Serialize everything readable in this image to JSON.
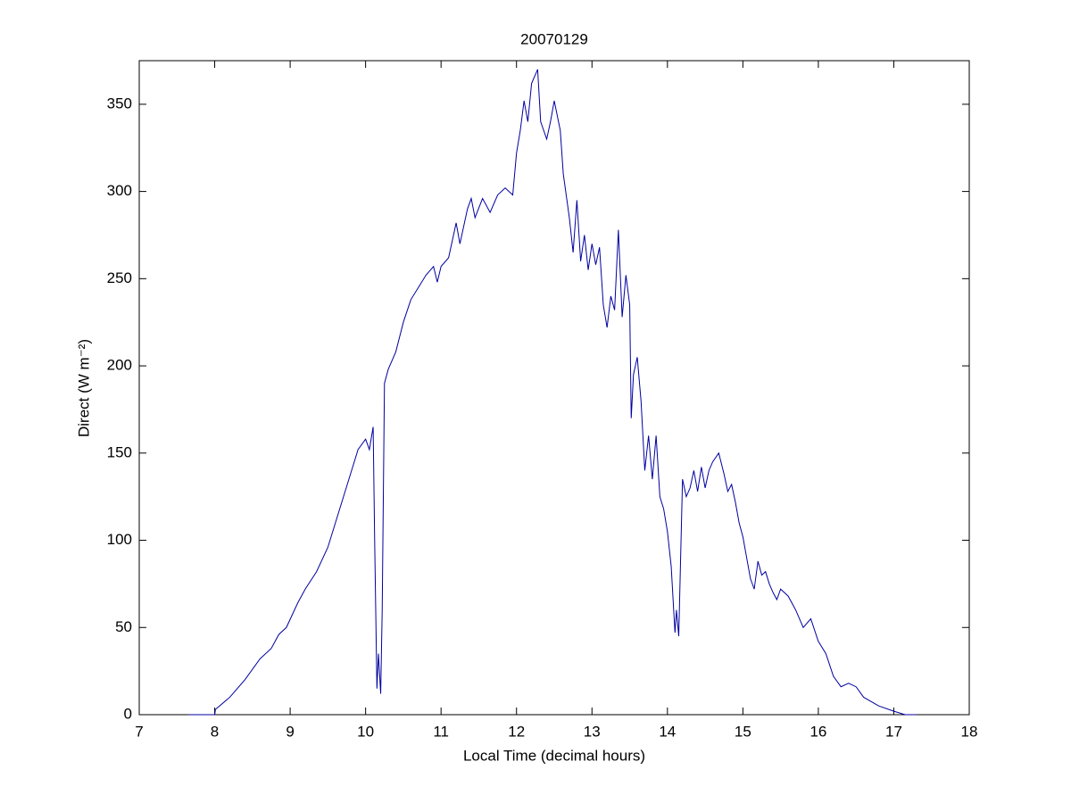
{
  "chart_data": {
    "type": "line",
    "title": "20070129",
    "xlabel": "Local Time (decimal hours)",
    "ylabel": "Direct (W m⁻²)",
    "xlim": [
      7,
      18
    ],
    "xticks": [
      7,
      8,
      9,
      10,
      11,
      12,
      13,
      14,
      15,
      16,
      17,
      18
    ],
    "ylim": [
      0,
      375
    ],
    "yticks": [
      0,
      50,
      100,
      150,
      200,
      250,
      300,
      350
    ],
    "series": [
      {
        "color": "#0000a0",
        "x": [
          7.65,
          8.0,
          8.01,
          8.2,
          8.4,
          8.6,
          8.75,
          8.85,
          8.95,
          9.1,
          9.2,
          9.35,
          9.5,
          9.6,
          9.7,
          9.8,
          9.9,
          10.0,
          10.05,
          10.1,
          10.12,
          10.15,
          10.17,
          10.2,
          10.22,
          10.25,
          10.3,
          10.4,
          10.5,
          10.6,
          10.7,
          10.8,
          10.9,
          10.95,
          11.0,
          11.1,
          11.2,
          11.25,
          11.35,
          11.4,
          11.45,
          11.55,
          11.65,
          11.75,
          11.85,
          11.95,
          12.0,
          12.05,
          12.1,
          12.15,
          12.2,
          12.28,
          12.32,
          12.4,
          12.45,
          12.5,
          12.58,
          12.62,
          12.7,
          12.75,
          12.8,
          12.85,
          12.9,
          12.95,
          13.0,
          13.05,
          13.1,
          13.15,
          13.2,
          13.25,
          13.3,
          13.35,
          13.4,
          13.45,
          13.5,
          13.52,
          13.55,
          13.6,
          13.65,
          13.7,
          13.75,
          13.8,
          13.85,
          13.9,
          13.95,
          14.0,
          14.05,
          14.1,
          14.12,
          14.15,
          14.2,
          14.25,
          14.3,
          14.35,
          14.4,
          14.45,
          14.5,
          14.55,
          14.6,
          14.68,
          14.75,
          14.8,
          14.85,
          14.9,
          14.95,
          15.0,
          15.05,
          15.1,
          15.15,
          15.2,
          15.25,
          15.3,
          15.35,
          15.4,
          15.45,
          15.5,
          15.6,
          15.7,
          15.8,
          15.9,
          16.0,
          16.1,
          16.2,
          16.3,
          16.4,
          16.5,
          16.6,
          16.8,
          17.0,
          17.15,
          17.3
        ],
        "values": [
          0,
          0,
          3,
          10,
          20,
          32,
          38,
          46,
          50,
          64,
          72,
          82,
          96,
          110,
          124,
          138,
          152,
          158,
          152,
          165,
          100,
          15,
          35,
          12,
          60,
          190,
          198,
          208,
          225,
          238,
          245,
          252,
          257,
          248,
          257,
          262,
          282,
          270,
          290,
          296,
          285,
          296,
          288,
          298,
          302,
          298,
          322,
          335,
          352,
          340,
          362,
          370,
          340,
          330,
          340,
          352,
          335,
          310,
          285,
          265,
          295,
          260,
          275,
          255,
          270,
          258,
          268,
          235,
          222,
          240,
          232,
          278,
          228,
          252,
          235,
          170,
          195,
          205,
          180,
          140,
          160,
          135,
          160,
          125,
          118,
          105,
          85,
          47,
          60,
          45,
          135,
          125,
          130,
          140,
          128,
          142,
          130,
          140,
          145,
          150,
          138,
          128,
          132,
          122,
          110,
          102,
          90,
          78,
          72,
          88,
          80,
          82,
          75,
          70,
          66,
          72,
          68,
          60,
          50,
          55,
          42,
          35,
          22,
          16,
          18,
          16,
          10,
          5,
          2,
          0,
          0
        ]
      }
    ]
  }
}
